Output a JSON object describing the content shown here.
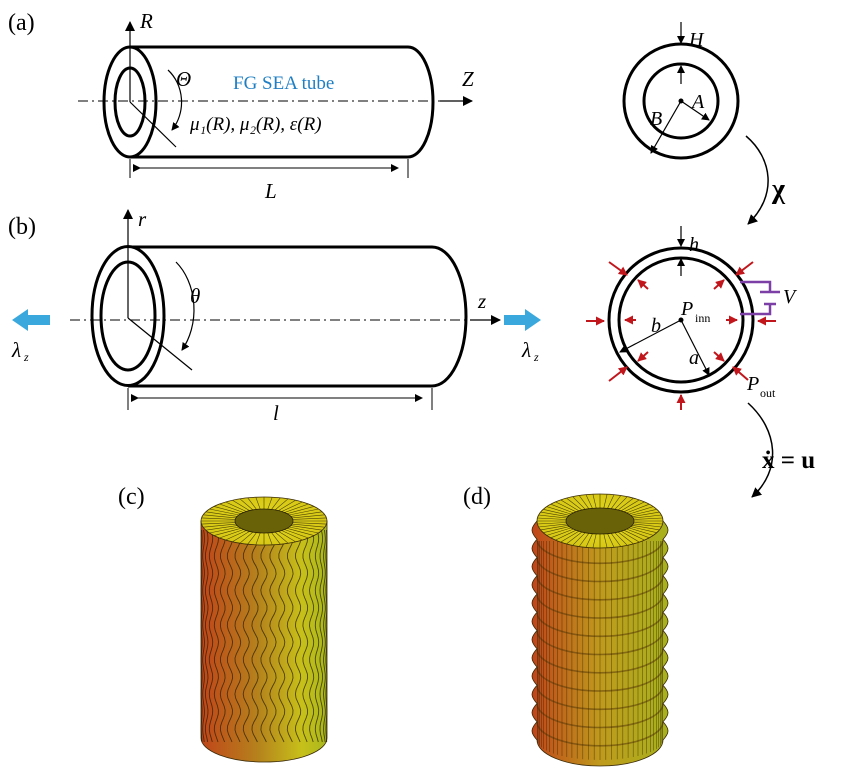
{
  "panels": {
    "a": "(a)",
    "b": "(b)",
    "c": "(c)",
    "d": "(d)"
  },
  "panel_a": {
    "axis_R": "R",
    "axis_Z": "Z",
    "angle": "Θ",
    "tube_name": "FG SEA tube",
    "properties": "μ₁(R), μ₂(R), ε(R)",
    "length": "L"
  },
  "panel_b": {
    "axis_r": "r",
    "axis_z": "z",
    "angle": "θ",
    "length": "l",
    "stretch_left": "λ",
    "stretch_right": "λ",
    "stretch_sub": "z"
  },
  "cross_section_ref": {
    "thickness": "H",
    "inner_radius": "A",
    "outer_radius": "B"
  },
  "mapping_chi": "χ",
  "cross_section_cur": {
    "thickness": "h",
    "inner_radius": "a",
    "outer_radius": "b",
    "voltage": "V",
    "p_inn": "P",
    "p_inn_sub": "inn",
    "p_out": "P",
    "p_out_sub": "out"
  },
  "mapping_u": "ẋ = u",
  "colors": {
    "accent_blue": "#1f7fc4",
    "arrow_blue": "#3aa8dc",
    "pressure_red": "#c0161c",
    "electrode_purple": "#7b3fa6",
    "mesh_yellow": "#d8cc10",
    "mesh_red": "#b8541c"
  }
}
